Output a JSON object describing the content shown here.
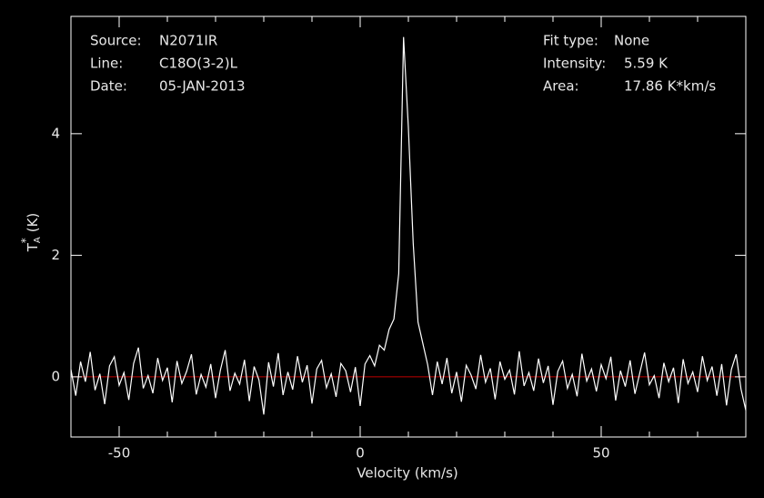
{
  "chart_data": {
    "type": "line",
    "annotations_left": [
      {
        "label": "Source:",
        "value": "N2071IR"
      },
      {
        "label": "Line:",
        "value": "C18O(3-2)L"
      },
      {
        "label": "Date:",
        "value": "05-JAN-2013"
      }
    ],
    "annotations_right": [
      {
        "label": "Fit type:",
        "value": "None"
      },
      {
        "label": "Intensity:",
        "value": "5.59 K"
      },
      {
        "label": "Area:",
        "value": "17.86 K*km/s"
      }
    ],
    "xlabel": "Velocity (km/s)",
    "ylabel": {
      "main": "T",
      "sub": "A",
      "sup": "*",
      "unit": "(K)"
    },
    "xlim": [
      -60,
      80
    ],
    "ylim": [
      -0.99,
      5.93
    ],
    "xticks": [
      -50,
      0,
      50
    ],
    "yticks": [
      0,
      2,
      4
    ],
    "xminorticks": [
      -60,
      -40,
      -30,
      -20,
      -10,
      10,
      20,
      30,
      40,
      60,
      70,
      80
    ],
    "baseline": 0,
    "baseline_color": "#c00000",
    "x": [
      -60,
      -59,
      -58,
      -57,
      -56,
      -55,
      -54,
      -53,
      -52,
      -51,
      -50,
      -49,
      -48,
      -47,
      -46,
      -45,
      -44,
      -43,
      -42,
      -41,
      -40,
      -39,
      -38,
      -37,
      -36,
      -35,
      -34,
      -33,
      -32,
      -31,
      -30,
      -29,
      -28,
      -27,
      -26,
      -25,
      -24,
      -23,
      -22,
      -21,
      -20,
      -19,
      -18,
      -17,
      -16,
      -15,
      -14,
      -13,
      -12,
      -11,
      -10,
      -9,
      -8,
      -7,
      -6,
      -5,
      -4,
      -3,
      -2,
      -1,
      0,
      1,
      2,
      3,
      4,
      5,
      6,
      7,
      8,
      9,
      10,
      11,
      12,
      13,
      14,
      15,
      16,
      17,
      18,
      19,
      20,
      21,
      22,
      23,
      24,
      25,
      26,
      27,
      28,
      29,
      30,
      31,
      32,
      33,
      34,
      35,
      36,
      37,
      38,
      39,
      40,
      41,
      42,
      43,
      44,
      45,
      46,
      47,
      48,
      49,
      50,
      51,
      52,
      53,
      54,
      55,
      56,
      57,
      58,
      59,
      60,
      61,
      62,
      63,
      64,
      65,
      66,
      67,
      68,
      69,
      70,
      71,
      72,
      73,
      74,
      75,
      76,
      77,
      78,
      79,
      80
    ],
    "series": [
      {
        "color": "#ffffff",
        "values": [
          0.12,
          -0.31,
          0.25,
          -0.08,
          0.41,
          -0.22,
          0.05,
          -0.45,
          0.18,
          0.33,
          -0.14,
          0.07,
          -0.38,
          0.22,
          0.48,
          -0.19,
          0.02,
          -0.27,
          0.31,
          -0.06,
          0.15,
          -0.42,
          0.26,
          -0.11,
          0.09,
          0.37,
          -0.29,
          0.04,
          -0.17,
          0.21,
          -0.35,
          0.11,
          0.44,
          -0.23,
          0.06,
          -0.12,
          0.28,
          -0.4,
          0.17,
          -0.05,
          -0.62,
          0.24,
          -0.16,
          0.39,
          -0.3,
          0.08,
          -0.21,
          0.34,
          -0.09,
          0.19,
          -0.44,
          0.13,
          0.27,
          -0.18,
          0.05,
          -0.33,
          0.22,
          0.1,
          -0.25,
          0.16,
          -0.48,
          0.21,
          0.35,
          0.18,
          0.52,
          0.44,
          0.78,
          0.95,
          1.7,
          5.59,
          4.1,
          2.2,
          0.9,
          0.55,
          0.2,
          -0.3,
          0.25,
          -0.12,
          0.31,
          -0.27,
          0.08,
          -0.41,
          0.19,
          0.03,
          -0.2,
          0.36,
          -0.09,
          0.14,
          -0.37,
          0.25,
          -0.04,
          0.11,
          -0.29,
          0.42,
          -0.15,
          0.07,
          -0.23,
          0.3,
          -0.1,
          0.18,
          -0.46,
          0.09,
          0.26,
          -0.19,
          0.04,
          -0.32,
          0.38,
          -0.07,
          0.13,
          -0.24,
          0.2,
          -0.03,
          0.33,
          -0.39,
          0.1,
          -0.16,
          0.27,
          -0.28,
          0.06,
          0.4,
          -0.13,
          0.02,
          -0.35,
          0.23,
          -0.08,
          0.15,
          -0.43,
          0.29,
          -0.11,
          0.08,
          -0.25,
          0.34,
          -0.06,
          0.17,
          -0.31,
          0.21,
          -0.47,
          0.12,
          0.37,
          -0.2,
          -0.55
        ]
      }
    ]
  }
}
